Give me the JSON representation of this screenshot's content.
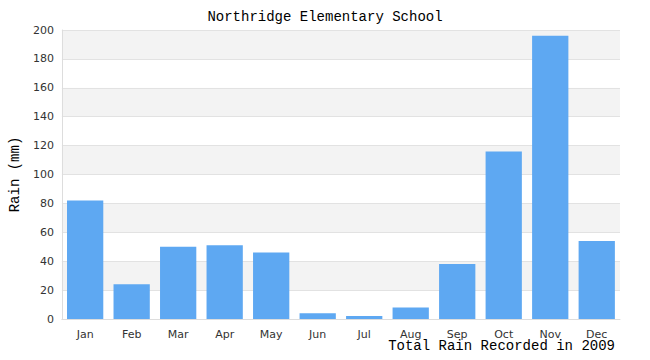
{
  "chart_data": {
    "type": "bar",
    "title": "Northridge Elementary School",
    "ylabel": "Rain (mm)",
    "xlabel": "Total Rain Recorded in 2009",
    "categories": [
      "Jan",
      "Feb",
      "Mar",
      "Apr",
      "May",
      "Jun",
      "Jul",
      "Aug",
      "Sep",
      "Oct",
      "Nov",
      "Dec"
    ],
    "values": [
      82,
      24,
      50,
      51,
      46,
      4,
      2,
      8,
      38,
      116,
      196,
      54
    ],
    "color": "#5ea8f2",
    "ylim": [
      0,
      200
    ],
    "yticks": [
      0,
      20,
      40,
      60,
      80,
      100,
      120,
      140,
      160,
      180,
      200
    ],
    "grid": true
  }
}
